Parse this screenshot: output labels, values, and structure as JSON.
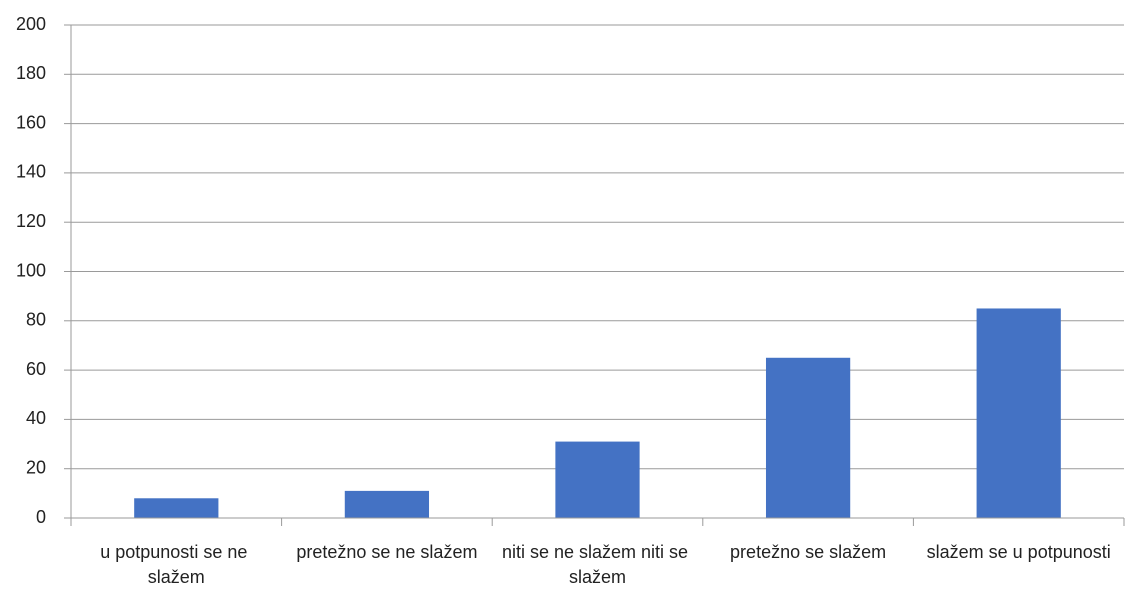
{
  "chart_data": {
    "type": "bar",
    "categories": [
      "u potpunosti se ne slažem",
      "pretežno se ne slažem",
      "niti se ne slažem niti se slažem",
      "pretežno se slažem",
      "slažem se u potpunosti"
    ],
    "values": [
      8,
      11,
      31,
      65,
      85
    ],
    "color": "#4472c4",
    "ylim": [
      0,
      200
    ],
    "yticks": [
      0,
      20,
      40,
      60,
      80,
      100,
      120,
      140,
      160,
      180,
      200
    ],
    "grid": true
  }
}
